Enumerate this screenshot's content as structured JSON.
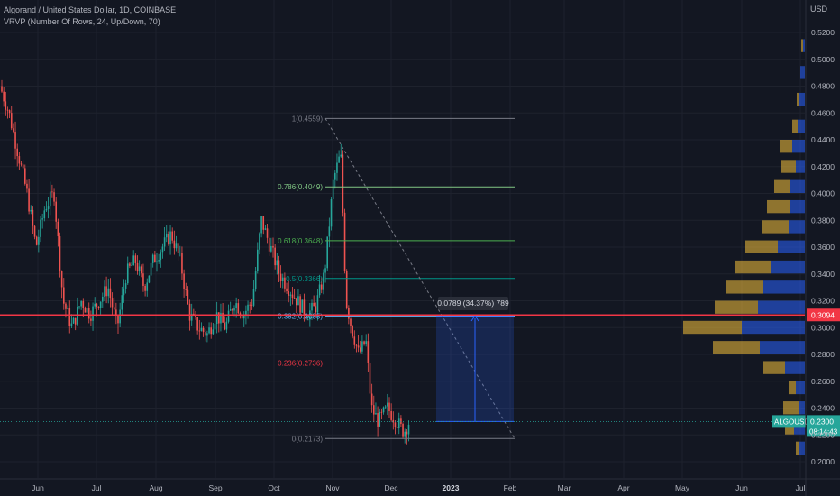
{
  "header": {
    "symbol_title": "Algorand / United States Dollar, 1D, COINBASE",
    "indicator_title": "VRVP (Number Of Rows, 24, Up/Down, 70)"
  },
  "price_axis": {
    "currency": "USD",
    "ticks": [
      "0.5200",
      "0.5000",
      "0.4800",
      "0.4600",
      "0.4400",
      "0.4200",
      "0.4000",
      "0.3800",
      "0.3600",
      "0.3400",
      "0.3200",
      "0.3000",
      "0.2800",
      "0.2600",
      "0.2400",
      "0.2200",
      "0.2000"
    ],
    "current_price_label": "0.3094",
    "symbol_label": "ALGOUSD",
    "last_price_label": "0.2300",
    "countdown_label": "08:14:43"
  },
  "time_axis": {
    "ticks": [
      "Jun",
      "Jul",
      "Aug",
      "Sep",
      "Oct",
      "Nov",
      "Dec",
      "2023",
      "Feb",
      "Mar",
      "Apr",
      "May",
      "Jun",
      "Jul"
    ],
    "bold_tick": "2023"
  },
  "fibonacci": {
    "levels": [
      {
        "label": "1(0.4559)",
        "price": 0.4559,
        "color": "#787b86"
      },
      {
        "label": "0.786(0.4049)",
        "price": 0.4049,
        "color": "#81c784"
      },
      {
        "label": "0.618(0.3648)",
        "price": 0.3648,
        "color": "#4caf50"
      },
      {
        "label": "0.5(0.3366)",
        "price": 0.3366,
        "color": "#009688"
      },
      {
        "label": "0.382(0.3085)",
        "price": 0.3085,
        "color": "#64b5f6"
      },
      {
        "label": "0.236(0.2736)",
        "price": 0.2736,
        "color": "#f23645"
      },
      {
        "label": "0(0.2173)",
        "price": 0.2173,
        "color": "#787b86"
      }
    ]
  },
  "measure_tool": {
    "label": "0.0789 (34.37%) 789",
    "from_price": 0.23,
    "to_price": 0.3089
  },
  "colors": {
    "background": "#131722",
    "up": "#26a69a",
    "down": "#ef5350",
    "hline": "#f23645",
    "vp_up": "#2962ff",
    "vp_down": "#f6c13b",
    "last_price": "#26a69a"
  },
  "horizontal_line": {
    "price": 0.3094
  }
}
